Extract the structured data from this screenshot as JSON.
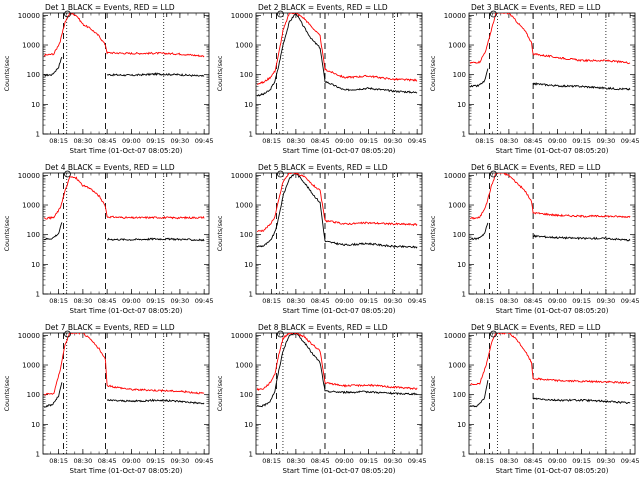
{
  "figure": {
    "legend_text": "BLACK = Events, RED = LLD",
    "ylabel": "Counts/sec",
    "xlabel": "Start Time (01-Oct-07 08:05:20)",
    "x_tick_labels": [
      "08:15",
      "08:30",
      "08:45",
      "09:00",
      "09:15",
      "09:30",
      "09:45"
    ],
    "y_tick_labels": [
      "1",
      "10",
      "100",
      "1000",
      "10000"
    ],
    "colors": {
      "events": "#000000",
      "lld": "#ff0000"
    }
  },
  "chart_data": [
    {
      "type": "line",
      "title": "Det 1",
      "scale_y": "log",
      "ylim": [
        1,
        12000
      ],
      "xlim": [
        "08:05:20",
        "09:48:00"
      ],
      "dashed_lines": [
        "08:18",
        "08:44"
      ],
      "dotted_lines": [
        "08:20",
        "09:20"
      ],
      "series": [
        {
          "name": "Events",
          "x": [
            "08:06",
            "08:11",
            "08:15",
            "08:17"
          ],
          "y": [
            95,
            100,
            180,
            400
          ]
        },
        {
          "name": "Events",
          "x": [
            "08:45",
            "09:00",
            "09:15",
            "09:30",
            "09:45"
          ],
          "y": [
            100,
            95,
            105,
            100,
            88
          ]
        },
        {
          "name": "LLD",
          "x": [
            "08:06",
            "08:12",
            "08:16",
            "08:19",
            "08:22",
            "08:26",
            "08:30",
            "08:35",
            "08:40",
            "08:44",
            "08:45",
            "09:00",
            "09:15",
            "09:30",
            "09:45"
          ],
          "y": [
            450,
            500,
            1300,
            6000,
            12000,
            10000,
            5000,
            3500,
            2000,
            1000,
            550,
            520,
            530,
            500,
            420
          ]
        }
      ]
    },
    {
      "type": "line",
      "title": "Det 2",
      "scale_y": "log",
      "ylim": [
        1,
        12000
      ],
      "xlim": [
        "08:05:20",
        "09:48:00"
      ],
      "dashed_lines": [
        "08:18",
        "08:48"
      ],
      "dotted_lines": [
        "08:22",
        "09:31"
      ],
      "series": [
        {
          "name": "Events",
          "x": [
            "08:06",
            "08:10",
            "08:14",
            "08:17",
            "08:19",
            "08:22",
            "08:26",
            "08:30",
            "08:35",
            "08:40",
            "08:45",
            "08:48",
            "09:00",
            "09:15",
            "09:30",
            "09:45"
          ],
          "y": [
            20,
            22,
            30,
            60,
            160,
            1000,
            6000,
            12000,
            4000,
            1500,
            800,
            60,
            30,
            35,
            28,
            25
          ]
        },
        {
          "name": "LLD",
          "x": [
            "08:06",
            "08:10",
            "08:14",
            "08:17",
            "08:19",
            "08:22",
            "08:26",
            "08:30",
            "08:35",
            "08:40",
            "08:45",
            "08:48",
            "09:00",
            "09:15",
            "09:30",
            "09:45"
          ],
          "y": [
            50,
            55,
            80,
            130,
            400,
            3000,
            12000,
            12000,
            8000,
            4000,
            2000,
            150,
            80,
            90,
            70,
            65
          ]
        }
      ]
    },
    {
      "type": "line",
      "title": "Det 3",
      "scale_y": "log",
      "ylim": [
        1,
        12000
      ],
      "xlim": [
        "08:05:20",
        "09:48:00"
      ],
      "dashed_lines": [
        "08:18",
        "08:45"
      ],
      "dotted_lines": [
        "08:23",
        "09:30"
      ],
      "series": [
        {
          "name": "Events",
          "x": [
            "08:06",
            "08:11",
            "08:15",
            "08:17"
          ],
          "y": [
            40,
            42,
            60,
            150
          ]
        },
        {
          "name": "Events",
          "x": [
            "08:45",
            "09:00",
            "09:15",
            "09:30",
            "09:45"
          ],
          "y": [
            50,
            42,
            40,
            35,
            32
          ]
        },
        {
          "name": "LLD",
          "x": [
            "08:06",
            "08:12",
            "08:16",
            "08:19",
            "08:22",
            "08:26",
            "08:30",
            "08:35",
            "08:40",
            "08:44",
            "08:45",
            "09:00",
            "09:15",
            "09:30",
            "09:45"
          ],
          "y": [
            250,
            270,
            700,
            3000,
            12000,
            12000,
            12000,
            6000,
            3000,
            1200,
            500,
            380,
            300,
            300,
            250
          ]
        }
      ]
    },
    {
      "type": "line",
      "title": "Det 4",
      "scale_y": "log",
      "ylim": [
        1,
        12000
      ],
      "xlim": [
        "08:05:20",
        "09:48:00"
      ],
      "dashed_lines": [
        "08:18",
        "08:44"
      ],
      "dotted_lines": [
        "08:20",
        "09:20"
      ],
      "series": [
        {
          "name": "Events",
          "x": [
            "08:06",
            "08:11",
            "08:15",
            "08:17"
          ],
          "y": [
            70,
            75,
            110,
            250
          ]
        },
        {
          "name": "Events",
          "x": [
            "08:45",
            "09:00",
            "09:15",
            "09:30",
            "09:45"
          ],
          "y": [
            70,
            68,
            72,
            70,
            65
          ]
        },
        {
          "name": "LLD",
          "x": [
            "08:06",
            "08:12",
            "08:16",
            "08:19",
            "08:22",
            "08:26",
            "08:30",
            "08:35",
            "08:40",
            "08:44",
            "08:45",
            "09:00",
            "09:15",
            "09:30",
            "09:45"
          ],
          "y": [
            350,
            380,
            800,
            3000,
            9000,
            8000,
            4500,
            3500,
            2000,
            900,
            400,
            370,
            380,
            370,
            380
          ]
        }
      ]
    },
    {
      "type": "line",
      "title": "Det 5",
      "scale_y": "log",
      "ylim": [
        1,
        12000
      ],
      "xlim": [
        "08:05:20",
        "09:48:00"
      ],
      "dashed_lines": [
        "08:18",
        "08:48"
      ],
      "dotted_lines": [
        "08:22",
        "09:31"
      ],
      "series": [
        {
          "name": "Events",
          "x": [
            "08:06",
            "08:10",
            "08:14",
            "08:17",
            "08:19",
            "08:22",
            "08:26",
            "08:30",
            "08:35",
            "08:40",
            "08:45",
            "08:48",
            "09:00",
            "09:15",
            "09:30",
            "09:45"
          ],
          "y": [
            40,
            42,
            60,
            120,
            300,
            2000,
            8000,
            12000,
            6000,
            2500,
            1200,
            60,
            45,
            50,
            40,
            38
          ]
        },
        {
          "name": "LLD",
          "x": [
            "08:06",
            "08:10",
            "08:14",
            "08:17",
            "08:19",
            "08:22",
            "08:26",
            "08:30",
            "08:35",
            "08:40",
            "08:45",
            "08:48",
            "09:00",
            "09:15",
            "09:30",
            "09:45"
          ],
          "y": [
            130,
            140,
            220,
            400,
            1200,
            6000,
            12000,
            12000,
            9000,
            5000,
            3000,
            300,
            230,
            250,
            230,
            220
          ]
        }
      ]
    },
    {
      "type": "line",
      "title": "Det 6",
      "scale_y": "log",
      "ylim": [
        1,
        12000
      ],
      "xlim": [
        "08:05:20",
        "09:48:00"
      ],
      "dashed_lines": [
        "08:18",
        "08:45"
      ],
      "dotted_lines": [
        "08:23",
        "09:30"
      ],
      "series": [
        {
          "name": "Events",
          "x": [
            "08:06",
            "08:11",
            "08:15",
            "08:17"
          ],
          "y": [
            70,
            75,
            110,
            250
          ]
        },
        {
          "name": "Events",
          "x": [
            "08:45",
            "09:00",
            "09:15",
            "09:30",
            "09:45"
          ],
          "y": [
            90,
            80,
            75,
            75,
            65
          ]
        },
        {
          "name": "LLD",
          "x": [
            "08:06",
            "08:12",
            "08:16",
            "08:19",
            "08:22",
            "08:26",
            "08:30",
            "08:35",
            "08:40",
            "08:44",
            "08:45",
            "09:00",
            "09:15",
            "09:30",
            "09:45"
          ],
          "y": [
            350,
            380,
            1000,
            4000,
            12000,
            12000,
            10000,
            5500,
            3000,
            1300,
            550,
            450,
            420,
            420,
            400
          ]
        }
      ]
    },
    {
      "type": "line",
      "title": "Det 7",
      "scale_y": "log",
      "ylim": [
        1,
        12000
      ],
      "xlim": [
        "08:05:20",
        "09:48:00"
      ],
      "dashed_lines": [
        "08:18",
        "08:44"
      ],
      "dotted_lines": [
        "08:20",
        "09:20"
      ],
      "series": [
        {
          "name": "Events",
          "x": [
            "08:06",
            "08:11",
            "08:15",
            "08:17"
          ],
          "y": [
            40,
            45,
            90,
            250
          ]
        },
        {
          "name": "Events",
          "x": [
            "08:45",
            "09:00",
            "09:15",
            "09:30",
            "09:45"
          ],
          "y": [
            65,
            60,
            65,
            60,
            50
          ]
        },
        {
          "name": "LLD",
          "x": [
            "08:06",
            "08:12",
            "08:16",
            "08:19",
            "08:22",
            "08:26",
            "08:30",
            "08:35",
            "08:40",
            "08:44",
            "08:45",
            "09:00",
            "09:15",
            "09:30",
            "09:45"
          ],
          "y": [
            100,
            110,
            700,
            5000,
            12000,
            12000,
            12000,
            7000,
            3500,
            1500,
            200,
            150,
            140,
            130,
            110
          ]
        }
      ]
    },
    {
      "type": "line",
      "title": "Det 8",
      "scale_y": "log",
      "ylim": [
        1,
        12000
      ],
      "xlim": [
        "08:05:20",
        "09:48:00"
      ],
      "dashed_lines": [
        "08:18",
        "08:48"
      ],
      "dotted_lines": [
        "08:22",
        "09:31"
      ],
      "series": [
        {
          "name": "Events",
          "x": [
            "08:06",
            "08:10",
            "08:14",
            "08:17",
            "08:19",
            "08:22",
            "08:26",
            "08:30",
            "08:35",
            "08:40",
            "08:45",
            "08:48",
            "09:00",
            "09:15",
            "09:30",
            "09:45"
          ],
          "y": [
            40,
            42,
            60,
            130,
            500,
            3000,
            10000,
            12000,
            6000,
            2500,
            1200,
            130,
            120,
            125,
            110,
            105
          ]
        },
        {
          "name": "LLD",
          "x": [
            "08:06",
            "08:10",
            "08:14",
            "08:17",
            "08:19",
            "08:22",
            "08:26",
            "08:30",
            "08:35",
            "08:40",
            "08:45",
            "08:48",
            "09:00",
            "09:15",
            "09:30",
            "09:45"
          ],
          "y": [
            150,
            160,
            250,
            500,
            1800,
            8000,
            12000,
            12000,
            9000,
            5000,
            3000,
            250,
            200,
            210,
            180,
            160
          ]
        }
      ]
    },
    {
      "type": "line",
      "title": "Det 9",
      "scale_y": "log",
      "ylim": [
        1,
        12000
      ],
      "xlim": [
        "08:05:20",
        "09:48:00"
      ],
      "dashed_lines": [
        "08:18",
        "08:45"
      ],
      "dotted_lines": [
        "08:23",
        "09:30"
      ],
      "series": [
        {
          "name": "Events",
          "x": [
            "08:06",
            "08:11",
            "08:15",
            "08:17"
          ],
          "y": [
            40,
            42,
            80,
            300
          ]
        },
        {
          "name": "Events",
          "x": [
            "08:45",
            "09:00",
            "09:15",
            "09:30",
            "09:45"
          ],
          "y": [
            75,
            65,
            65,
            60,
            52
          ]
        },
        {
          "name": "LLD",
          "x": [
            "08:06",
            "08:12",
            "08:16",
            "08:19",
            "08:22",
            "08:26",
            "08:30",
            "08:35",
            "08:40",
            "08:44",
            "08:45",
            "09:00",
            "09:15",
            "09:30",
            "09:45"
          ],
          "y": [
            220,
            240,
            1000,
            5000,
            12000,
            12000,
            12000,
            7000,
            3000,
            1200,
            350,
            300,
            280,
            270,
            250
          ]
        }
      ]
    }
  ]
}
